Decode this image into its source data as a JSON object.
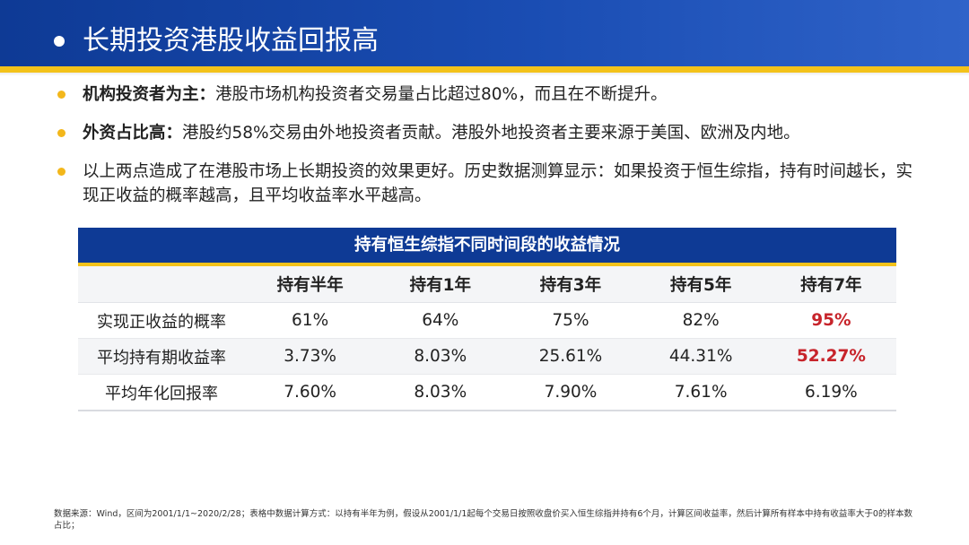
{
  "header": {
    "title": "长期投资港股收益回报高"
  },
  "bullets": [
    {
      "lead": "机构投资者为主：",
      "text": "港股市场机构投资者交易量占比超过80%，而且在不断提升。"
    },
    {
      "lead": "外资占比高：",
      "text": "港股约58%交易由外地投资者贡献。港股外地投资者主要来源于美国、欧洲及内地。"
    },
    {
      "lead": "",
      "text": "以上两点造成了在港股市场上长期投资的效果更好。历史数据测算显示：如果投资于恒生综指，持有时间越长，实现正收益的概率越高，且平均收益率水平越高。"
    }
  ],
  "table": {
    "title": "持有恒生综指不同时间段的收益情况",
    "columns": [
      "",
      "持有半年",
      "持有1年",
      "持有3年",
      "持有5年",
      "持有7年"
    ],
    "rows": [
      {
        "label": "实现正收益的概率",
        "values": [
          "61%",
          "64%",
          "75%",
          "82%",
          "95%"
        ]
      },
      {
        "label": "平均持有期收益率",
        "values": [
          "3.73%",
          "8.03%",
          "25.61%",
          "44.31%",
          "52.27%"
        ]
      },
      {
        "label": "平均年化回报率",
        "values": [
          "7.60%",
          "8.03%",
          "7.90%",
          "7.61%",
          "6.19%"
        ]
      }
    ]
  },
  "footnote": "数据来源：Wind，区间为2001/1/1~2020/2/28；表格中数据计算方式：以持有半年为例，假设从2001/1/1起每个交易日按照收盘价买入恒生综指并持有6个月，计算区间收益率，然后计算所有样本中持有收益率大于0的样本数占比；",
  "colors": {
    "header_blue": "#0e3a95",
    "accent_yellow": "#f3c21a",
    "highlight_red": "#c7242b"
  }
}
